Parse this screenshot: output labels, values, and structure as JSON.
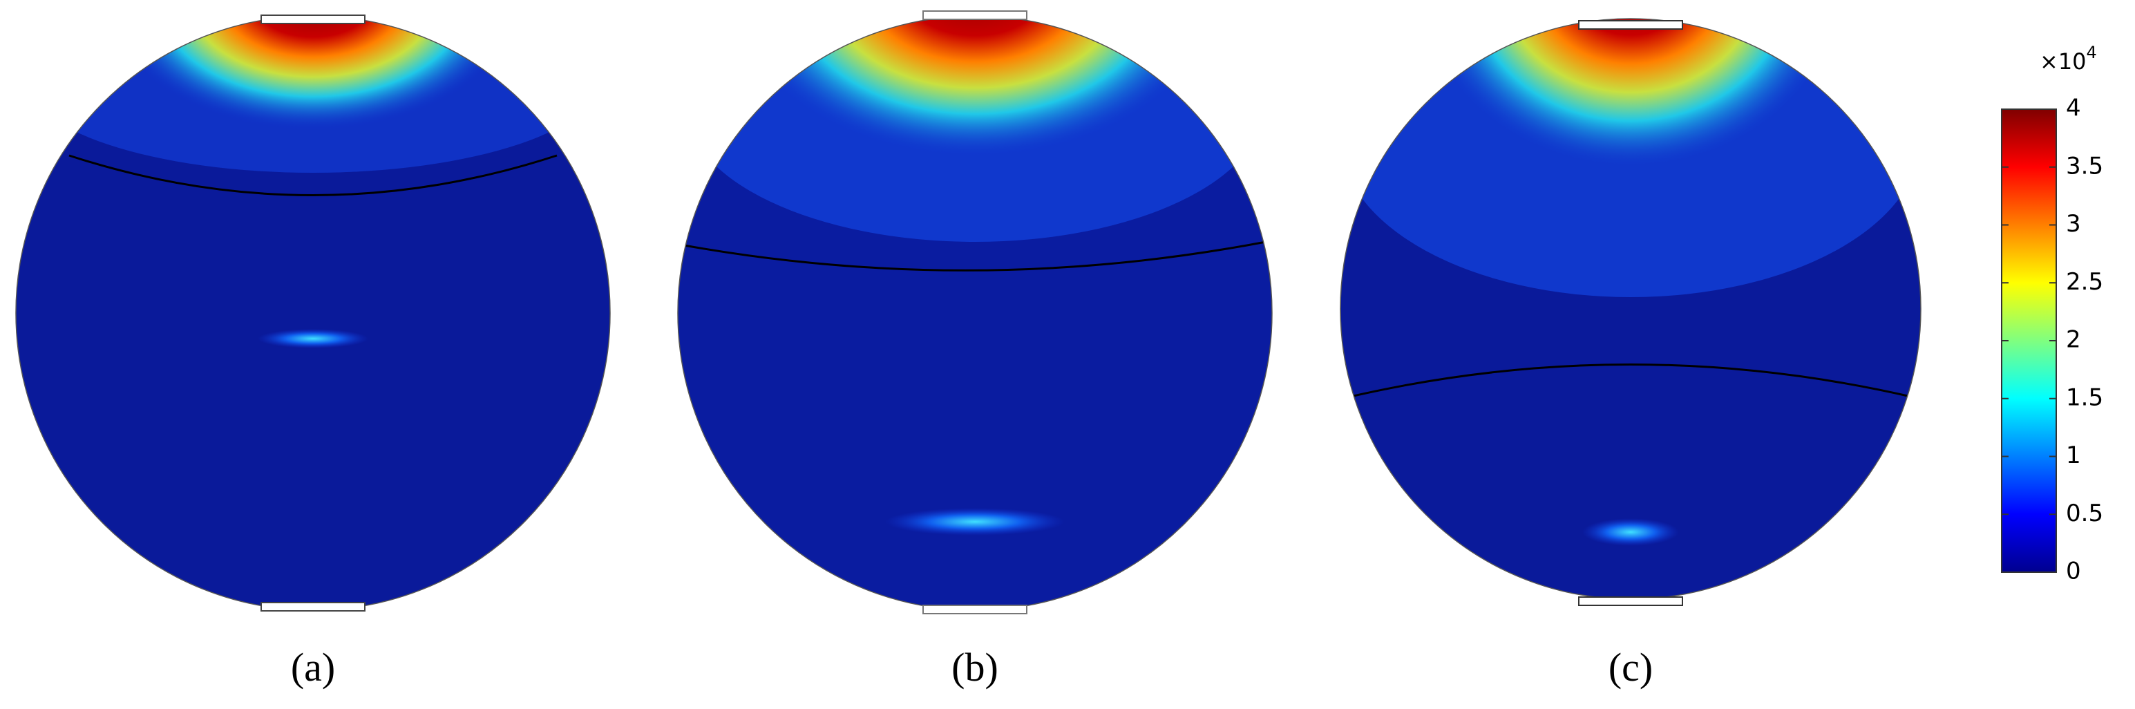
{
  "panels": [
    {
      "label": "(a)"
    },
    {
      "label": "(b)"
    },
    {
      "label": "(c)"
    }
  ],
  "colorbar": {
    "multiplier": "×10",
    "exponent": "4",
    "lim": [
      0,
      4
    ],
    "ticks": [
      0,
      0.5,
      1,
      1.5,
      2,
      2.5,
      3,
      3.5,
      4
    ]
  }
}
